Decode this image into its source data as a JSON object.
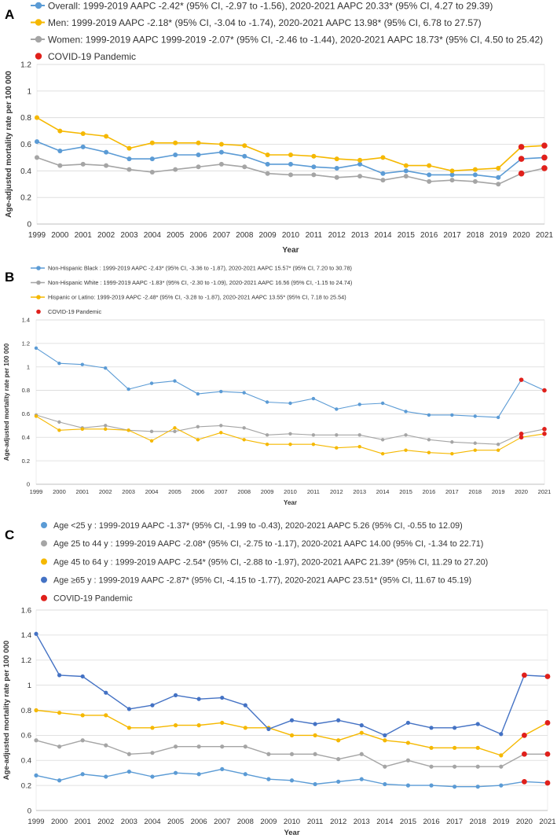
{
  "chart_data": [
    {
      "panel": "A",
      "type": "line",
      "title": "",
      "xlabel": "Year",
      "ylabel": "Age-adjusted mortality rate per 100 000",
      "ylim": [
        0,
        1.2
      ],
      "yticks": [
        "0",
        "0.2",
        "0.4",
        "0.6",
        "0.8",
        "1",
        "1.2"
      ],
      "categories": [
        "1999",
        "2000",
        "2001",
        "2002",
        "2003",
        "2004",
        "2005",
        "2006",
        "2007",
        "2008",
        "2009",
        "2010",
        "2011",
        "2012",
        "2013",
        "2014",
        "2015",
        "2016",
        "2017",
        "2018",
        "2019",
        "2020",
        "2021"
      ],
      "pandemic_legend": "COVID-19 Pandemic",
      "pandemic_color": "#e0201b",
      "series": [
        {
          "name": "Overall: 1999-2019 AAPC -2.42* (95% CI, -2.97 to -1.56), 2020-2021 AAPC 20.33* (95% CI, 4.27 to 29.39)",
          "color": "#5b9bd5",
          "values": [
            0.62,
            0.55,
            0.58,
            0.54,
            0.49,
            0.49,
            0.52,
            0.52,
            0.54,
            0.51,
            0.45,
            0.45,
            0.43,
            0.42,
            0.45,
            0.38,
            0.4,
            0.37,
            0.37,
            0.37,
            0.35,
            0.49,
            0.5
          ]
        },
        {
          "name": "Men: 1999-2019 AAPC -2.18* (95% CI, -3.04 to -1.74), 2020-2021 AAPC 13.98* (95% CI, 6.78 to 27.57)",
          "color": "#f5b800",
          "values": [
            0.8,
            0.7,
            0.68,
            0.66,
            0.57,
            0.61,
            0.61,
            0.61,
            0.6,
            0.59,
            0.52,
            0.52,
            0.51,
            0.49,
            0.48,
            0.5,
            0.44,
            0.44,
            0.4,
            0.41,
            0.42,
            0.58,
            0.59
          ]
        },
        {
          "name": "Women: 1999-2019 AAPC 1999-2019 -2.07* (95% CI, -2.46 to -1.44), 2020-2021 AAPC 18.73* (95% CI, 4.50 to 25.42)",
          "color": "#a5a5a5",
          "values": [
            0.5,
            0.44,
            0.45,
            0.44,
            0.41,
            0.39,
            0.41,
            0.43,
            0.45,
            0.43,
            0.38,
            0.37,
            0.37,
            0.35,
            0.36,
            0.33,
            0.36,
            0.32,
            0.33,
            0.32,
            0.3,
            0.38,
            0.42
          ]
        }
      ]
    },
    {
      "panel": "B",
      "type": "line",
      "title": "",
      "xlabel": "Year",
      "ylabel": "Age-adjusted mortality rate per 100 000",
      "ylim": [
        0,
        1.4
      ],
      "yticks": [
        "0",
        "0.2",
        "0.4",
        "0.6",
        "0.8",
        "1",
        "1.2",
        "1.4"
      ],
      "categories": [
        "1999",
        "2000",
        "2001",
        "2002",
        "2003",
        "2004",
        "2005",
        "2006",
        "2007",
        "2008",
        "2009",
        "2010",
        "2011",
        "2012",
        "2013",
        "2014",
        "2015",
        "2016",
        "2017",
        "2018",
        "2019",
        "2020",
        "2021"
      ],
      "pandemic_legend": "COVID-19 Pandemic",
      "pandemic_color": "#e0201b",
      "series": [
        {
          "name": "Non-Hispanic Black : 1999-2019 AAPC -2.43* (95% CI, -3.36 to -1.87), 2020-2021 AAPC 15.57* (95% CI, 7.20 to 30.78)",
          "color": "#5b9bd5",
          "values": [
            1.16,
            1.03,
            1.02,
            0.99,
            0.81,
            0.86,
            0.88,
            0.77,
            0.79,
            0.78,
            0.7,
            0.69,
            0.73,
            0.64,
            0.68,
            0.69,
            0.62,
            0.59,
            0.59,
            0.58,
            0.57,
            0.89,
            0.8
          ]
        },
        {
          "name": "Non-Hispanic White : 1999-2019 AAPC -1.83* (95% CI, -2.30 to -1.09), 2020-2021 AAPC 16.56 (95% CI, -1.15 to 24.74)",
          "color": "#a5a5a5",
          "values": [
            0.59,
            0.53,
            0.48,
            0.5,
            0.46,
            0.45,
            0.45,
            0.49,
            0.5,
            0.48,
            0.42,
            0.43,
            0.42,
            0.42,
            0.42,
            0.38,
            0.42,
            0.38,
            0.36,
            0.35,
            0.34,
            0.43,
            0.47
          ]
        },
        {
          "name": "Hispanic or Latino: 1999-2019 AAPC -2.48* (95% CI, -3.28 to -1.87), 2020-2021 AAPC 13.55* (95% CI, 7.18 to 25.54)",
          "color": "#f5b800",
          "values": [
            0.58,
            0.46,
            0.47,
            0.47,
            0.46,
            0.37,
            0.48,
            0.38,
            0.44,
            0.38,
            0.34,
            0.34,
            0.34,
            0.31,
            0.32,
            0.26,
            0.29,
            0.27,
            0.26,
            0.29,
            0.29,
            0.4,
            0.43
          ]
        }
      ]
    },
    {
      "panel": "C",
      "type": "line",
      "title": "",
      "xlabel": "Year",
      "ylabel": "Age-adjusted mortality rate per 100 000",
      "ylim": [
        0,
        1.6
      ],
      "yticks": [
        "0",
        "0.2",
        "0.4",
        "0.6",
        "0.8",
        "1",
        "1.2",
        "1.4",
        "1.6"
      ],
      "categories": [
        "1999",
        "2000",
        "2001",
        "2002",
        "2003",
        "2004",
        "2005",
        "2006",
        "2007",
        "2008",
        "2009",
        "2010",
        "2011",
        "2012",
        "2013",
        "2014",
        "2015",
        "2016",
        "2017",
        "2018",
        "2019",
        "2020",
        "2021"
      ],
      "pandemic_legend": "COVID-19 Pandemic",
      "pandemic_color": "#e0201b",
      "series": [
        {
          "name": "Age <25 y : 1999-2019 AAPC -1.37* (95% CI, -1.99 to -0.43), 2020-2021 AAPC 5.26 (95% CI, -0.55 to 12.09)",
          "color": "#5b9bd5",
          "values": [
            0.28,
            0.24,
            0.29,
            0.27,
            0.31,
            0.27,
            0.3,
            0.29,
            0.33,
            0.29,
            0.25,
            0.24,
            0.21,
            0.23,
            0.25,
            0.21,
            0.2,
            0.2,
            0.19,
            0.19,
            0.2,
            0.23,
            0.22
          ]
        },
        {
          "name": "Age 25 to 44 y : 1999-2019 AAPC -2.08* (95% CI, -2.75 to -1.17), 2020-2021 AAPC 14.00 (95% CI, -1.34 to 22.71)",
          "color": "#a5a5a5",
          "values": [
            0.56,
            0.51,
            0.56,
            0.52,
            0.45,
            0.46,
            0.51,
            0.51,
            0.51,
            0.51,
            0.45,
            0.45,
            0.45,
            0.41,
            0.45,
            0.35,
            0.4,
            0.35,
            0.35,
            0.35,
            0.35,
            0.45,
            0.45
          ]
        },
        {
          "name": "Age 45 to 64 y : 1999-2019 AAPC -2.54* (95% CI, -2.88 to -1.97), 2020-2021 AAPC 21.39* (95% CI, 11.29 to 27.20)",
          "color": "#f5b800",
          "values": [
            0.8,
            0.78,
            0.76,
            0.76,
            0.66,
            0.66,
            0.68,
            0.68,
            0.7,
            0.66,
            0.66,
            0.6,
            0.6,
            0.56,
            0.62,
            0.56,
            0.54,
            0.5,
            0.5,
            0.5,
            0.44,
            0.6,
            0.7
          ]
        },
        {
          "name": "Age ≥65 y : 1999-2019 AAPC -2.87* (95% CI, -4.15 to -1.77), 2020-2021 AAPC 23.51* (95% CI, 11.67 to 45.19)",
          "color": "#4472c4",
          "values": [
            1.41,
            1.08,
            1.07,
            0.94,
            0.81,
            0.84,
            0.92,
            0.89,
            0.9,
            0.84,
            0.65,
            0.72,
            0.69,
            0.72,
            0.68,
            0.6,
            0.7,
            0.66,
            0.66,
            0.69,
            0.61,
            1.08,
            1.07
          ]
        }
      ]
    }
  ]
}
